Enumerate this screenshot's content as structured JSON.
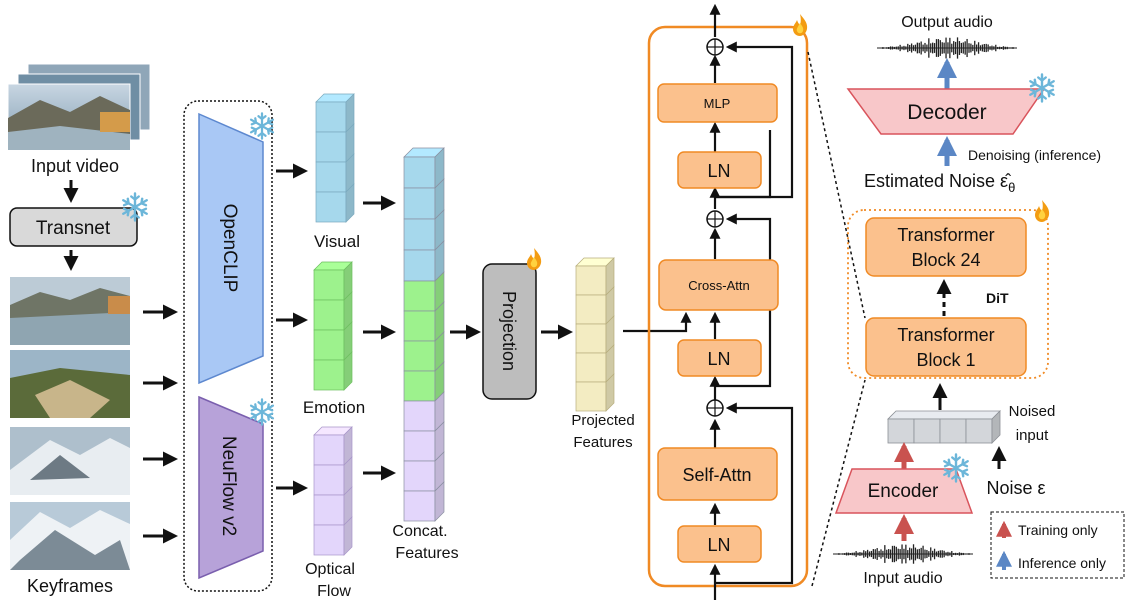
{
  "input_video": {
    "label": "Input video"
  },
  "transnet": {
    "label": "Transnet"
  },
  "keyframes": {
    "label": "Keyframes"
  },
  "encoders": {
    "openclip": "OpenCLIP",
    "neuflow": "NeuFlow v2"
  },
  "features": {
    "visual": "Visual",
    "emotion": "Emotion",
    "optical_flow_line1": "Optical",
    "optical_flow_line2": "Flow",
    "concat_line1": "Concat.",
    "concat_line2": "Features",
    "projection": "Projection",
    "projected_line1": "Projected",
    "projected_line2": "Features"
  },
  "transformer_detail": {
    "mlp": "MLP",
    "ln_top": "LN",
    "cross_attn": "Cross-Attn",
    "ln_mid": "LN",
    "self_attn": "Self-Attn",
    "ln_bottom": "LN"
  },
  "dit": {
    "output_audio": "Output audio",
    "decoder": "Decoder",
    "denoising": "Denoising (inference)",
    "estimated_noise": "Estimated Noise ε̂",
    "estimated_noise_sub": "θ",
    "block_top_line1": "Transformer",
    "block_top_line2": "Block 24",
    "dit_label": "DiT",
    "block_bottom_line1": "Transformer",
    "block_bottom_line2": "Block 1",
    "noised_input_line1": "Noised",
    "noised_input_line2": "input",
    "encoder": "Encoder",
    "noise": "Noise ε",
    "input_audio": "Input audio"
  },
  "legend": {
    "training": "Training only",
    "inference": "Inference only"
  },
  "colors": {
    "orange_fill": "#fbc18d",
    "orange_stroke": "#f08a24",
    "pink_fill": "#f8c7c9",
    "pink_stroke": "#d9545c",
    "visual": "#a6d8ec",
    "emotion": "#9df28d",
    "flow": "#e3d6fb",
    "projected": "#f3ecc2",
    "openclip": "#a9c8f5",
    "neuflow": "#b7a2d9",
    "arrow_red": "#c9524f",
    "arrow_blue": "#5b87c5"
  },
  "icons": [
    "snowflake-icon",
    "flame-icon"
  ]
}
